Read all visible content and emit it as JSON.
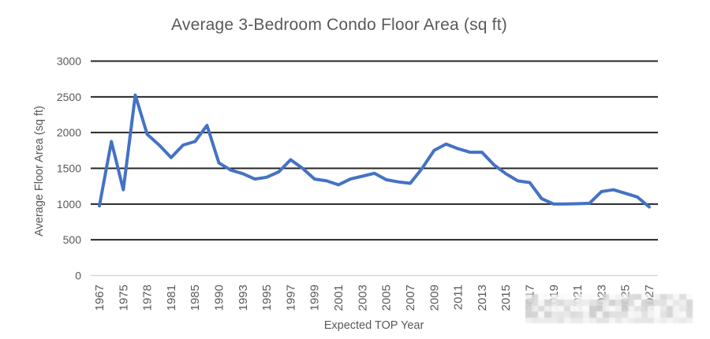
{
  "chart_data": {
    "type": "line",
    "title": "Average 3-Bedroom Condo Floor Area (sq ft)",
    "xlabel": "Expected TOP Year",
    "ylabel": "Average Floor Area (sq ft)",
    "ylim": [
      0,
      3000
    ],
    "y_ticks": [
      0,
      500,
      1000,
      1500,
      2000,
      2500,
      3000
    ],
    "x_tick_labels": [
      "1967",
      "1975",
      "1978",
      "1981",
      "1985",
      "1990",
      "1993",
      "1995",
      "1997",
      "1999",
      "2001",
      "2003",
      "2005",
      "2007",
      "2009",
      "2011",
      "2013",
      "2015",
      "2017",
      "2019",
      "2021",
      "2023",
      "2025",
      "2027"
    ],
    "x_label_interval": 2,
    "x_labels_obscured_by_blur": [
      "2019",
      "2021",
      "2023",
      "2025",
      "2027"
    ],
    "values": [
      975,
      1875,
      1200,
      2525,
      1975,
      1825,
      1650,
      1825,
      1875,
      2100,
      1575,
      1475,
      1425,
      1350,
      1375,
      1450,
      1620,
      1500,
      1350,
      1325,
      1270,
      1350,
      1390,
      1430,
      1340,
      1310,
      1290,
      1500,
      1750,
      1840,
      1775,
      1725,
      1725,
      1550,
      1425,
      1325,
      1300,
      1075,
      1000,
      1000,
      1005,
      1010,
      1175,
      1200,
      1150,
      1100,
      960
    ],
    "grid": true,
    "legend": "none",
    "colors": {
      "line": "#4472C4",
      "gridline": "#262626",
      "zero_axis_line": "#d9d9d9",
      "text": "#595959"
    }
  }
}
